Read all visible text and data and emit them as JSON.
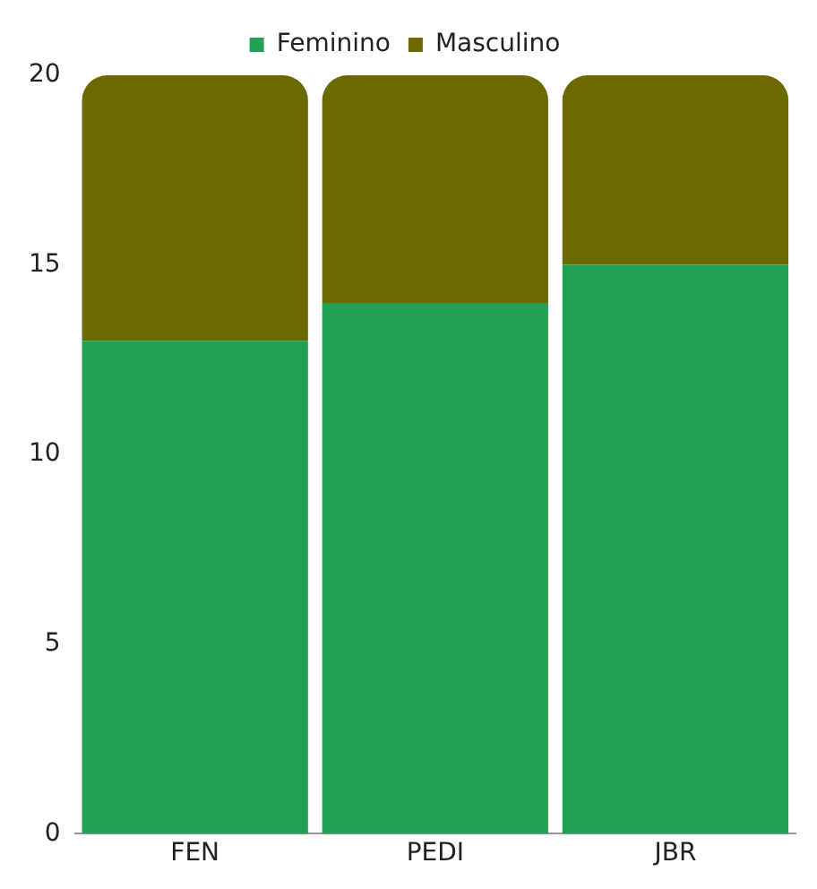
{
  "chart_data": {
    "type": "bar",
    "stacked": true,
    "categories": [
      "FEN",
      "PEDI",
      "JBR"
    ],
    "series": [
      {
        "name": "Feminino",
        "color": "#22a152",
        "values": [
          13,
          14,
          15
        ]
      },
      {
        "name": "Masculino",
        "color": "#6b6a00",
        "values": [
          7,
          6,
          5
        ]
      }
    ],
    "ylim": [
      0,
      20
    ],
    "yticks": [
      0,
      5,
      10,
      15,
      20
    ],
    "grid": false,
    "legend": "top"
  }
}
